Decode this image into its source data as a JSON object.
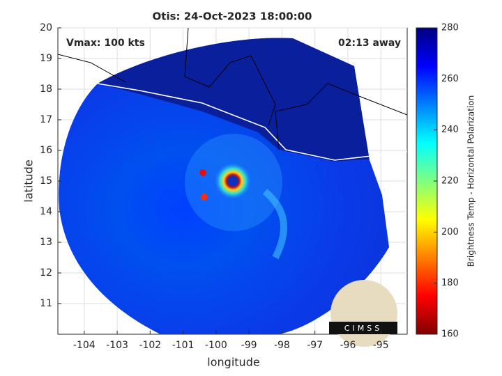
{
  "chart_data": {
    "type": "map",
    "title": "Otis: 24-Oct-2023 18:00:00",
    "annotations": [
      "Vmax: 100 kts",
      "02:13 away"
    ],
    "x_label": "longitude",
    "y_label": "latitude",
    "xlim": [
      -104.8,
      -94.2
    ],
    "xticks": [
      -104,
      -103,
      -102,
      -101,
      -100,
      -99,
      -98,
      -97,
      -96,
      -95
    ],
    "ylim": [
      10,
      20
    ],
    "yticks": [
      11,
      12,
      13,
      14,
      15,
      16,
      17,
      18,
      19,
      20
    ],
    "grid": true,
    "colorbar": {
      "label": "Brightness Temp - Horizontal Polarization",
      "lim": [
        160,
        280
      ],
      "ticks": [
        160,
        180,
        200,
        220,
        240,
        260,
        280
      ]
    },
    "logo": "CIMSS"
  }
}
